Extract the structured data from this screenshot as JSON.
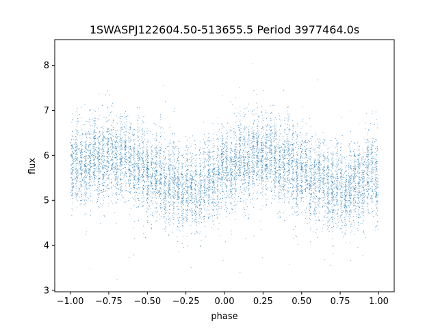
{
  "chart_data": {
    "type": "scatter",
    "title": "1SWASPJ122604.50-513655.5 Period 3977464.0s",
    "xlabel": "phase",
    "ylabel": "flux",
    "xlim": [
      -1.1,
      1.1
    ],
    "ylim": [
      2.97,
      8.57
    ],
    "xticks": [
      -1.0,
      -0.75,
      -0.5,
      -0.25,
      0.0,
      0.25,
      0.5,
      0.75,
      1.0
    ],
    "xtick_labels": [
      "−1.00",
      "−0.75",
      "−0.50",
      "−0.25",
      "0.00",
      "0.25",
      "0.50",
      "0.75",
      "1.00"
    ],
    "yticks": [
      3,
      4,
      5,
      6,
      7,
      8
    ],
    "ytick_labels": [
      "3",
      "4",
      "5",
      "6",
      "7",
      "8"
    ],
    "grid": false,
    "legend": "none",
    "color": "#1f77b4",
    "series": [
      {
        "trend_phase": [
          -1.0,
          -0.9,
          -0.8,
          -0.75,
          -0.7,
          -0.6,
          -0.5,
          -0.4,
          -0.3,
          -0.25,
          -0.2,
          -0.1,
          0.0,
          0.1,
          0.2,
          0.25,
          0.3,
          0.4,
          0.5,
          0.6,
          0.7,
          0.75,
          0.8,
          0.9,
          1.0
        ],
        "trend_flux": [
          5.75,
          5.85,
          5.95,
          6.0,
          5.95,
          5.85,
          5.65,
          5.45,
          5.3,
          5.25,
          5.25,
          5.45,
          5.65,
          5.85,
          5.95,
          6.0,
          5.95,
          5.85,
          5.65,
          5.45,
          5.3,
          5.25,
          5.25,
          5.45,
          5.65
        ],
        "typical_spread": 0.75,
        "n_points": 9000
      }
    ]
  }
}
